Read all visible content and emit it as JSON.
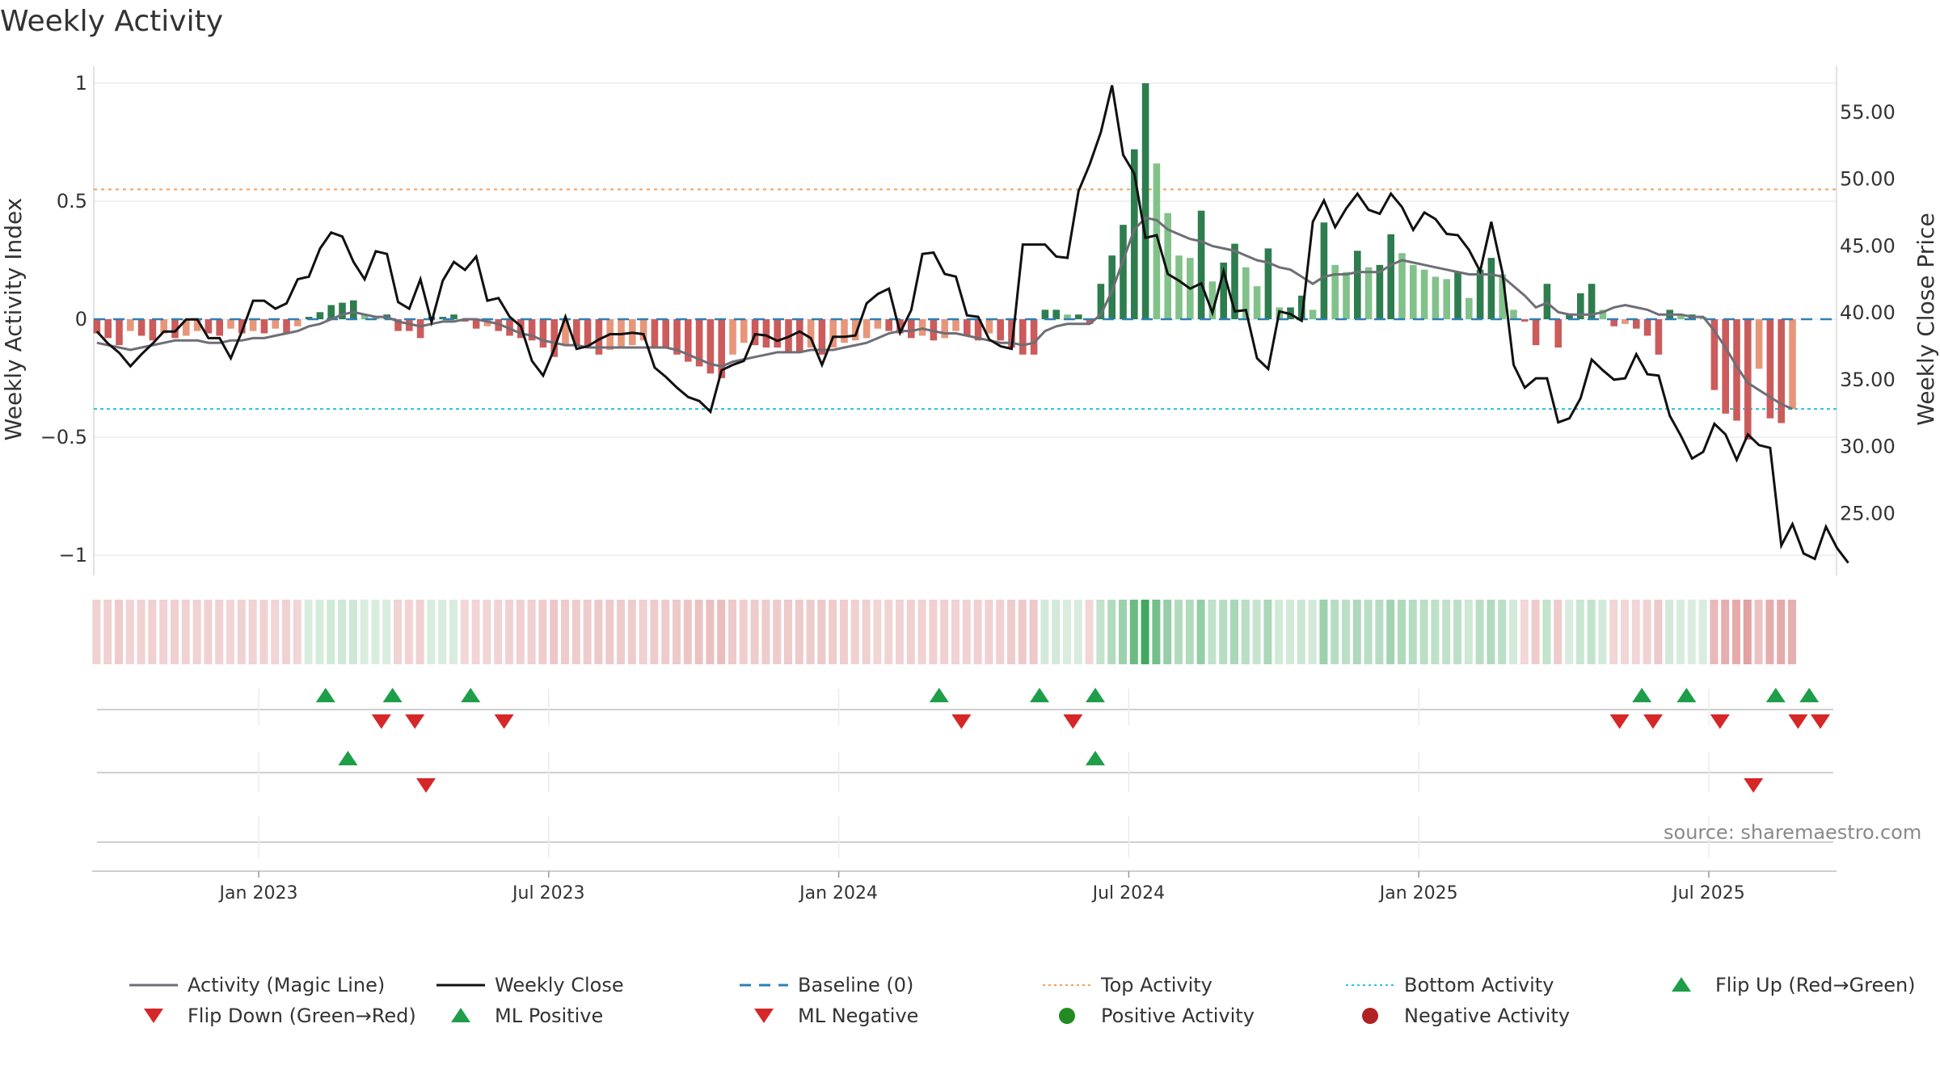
{
  "title": "Weekly Activity",
  "source": "source: sharemaestro.com",
  "colors": {
    "pos_dark": "#2e7d4f",
    "pos_light": "#82c28a",
    "neg_dark": "#cc5b5b",
    "neg_light": "#e8967a",
    "magic": "#6e6e76",
    "close": "#111111",
    "baseline": "#2f7fb5",
    "top": "#f0a060",
    "bottom": "#2ec4e0",
    "flip_up": "#1f9e4a",
    "flip_down": "#d62728"
  },
  "legend": [
    {
      "key": "magic",
      "label": "Activity (Magic Line)",
      "kind": "line"
    },
    {
      "key": "close",
      "label": "Weekly Close",
      "kind": "line"
    },
    {
      "key": "baseline",
      "label": "Baseline (0)",
      "kind": "dash"
    },
    {
      "key": "top",
      "label": "Top Activity",
      "kind": "dot"
    },
    {
      "key": "bottom",
      "label": "Bottom Activity",
      "kind": "dot"
    },
    {
      "key": "flip_up",
      "label": "Flip Up (Red→Green)",
      "kind": "tri-up"
    },
    {
      "key": "flip_down",
      "label": "Flip Down (Green→Red)",
      "kind": "tri-down"
    },
    {
      "key": "flip_up",
      "label": "ML Positive",
      "kind": "tri-up"
    },
    {
      "key": "flip_down",
      "label": "ML Negative",
      "kind": "tri-down"
    },
    {
      "key": "flip_up",
      "label": "Positive Activity",
      "kind": "circle"
    },
    {
      "key": "flip_down",
      "label": "Negative Activity",
      "kind": "circle"
    }
  ],
  "chart_data": {
    "type": "bar+line",
    "x_label_dates": [
      "Jan 2023",
      "Jul 2023",
      "Jan 2024",
      "Jul 2024",
      "Jan 2025",
      "Jul 2025"
    ],
    "x_tick_weeks": [
      10,
      36,
      62,
      88,
      114,
      140
    ],
    "left_axis": {
      "label": "Weekly Activity Index",
      "ticks": [
        1,
        0.5,
        0,
        -0.5,
        -1
      ],
      "tick_labels": [
        "1",
        "0.5",
        "0",
        "−0.5",
        "−1"
      ],
      "range": [
        -1.05,
        1.05
      ]
    },
    "right_axis": {
      "label": "Weekly Close Price",
      "ticks": [
        55,
        50,
        45,
        40,
        35,
        30,
        25
      ],
      "tick_labels": [
        "55.00",
        "50.00",
        "45.00",
        "40.00",
        "35.00",
        "30.00",
        "25.00"
      ],
      "range": [
        20.5,
        58.2
      ]
    },
    "top_activity": 0.55,
    "bottom_activity": -0.38,
    "start_week": -4.5,
    "activity": [
      -0.06,
      -0.08,
      -0.11,
      -0.05,
      -0.07,
      -0.09,
      -0.06,
      -0.08,
      -0.07,
      -0.05,
      -0.06,
      -0.07,
      -0.04,
      -0.06,
      -0.05,
      -0.06,
      -0.04,
      -0.06,
      -0.03,
      0.01,
      0.03,
      0.06,
      0.07,
      0.08,
      0.02,
      0.01,
      0.02,
      -0.05,
      -0.05,
      -0.08,
      0.01,
      0.01,
      0.02,
      -0.01,
      -0.04,
      -0.03,
      -0.05,
      -0.07,
      -0.08,
      -0.09,
      -0.12,
      -0.16,
      -0.11,
      -0.11,
      -0.12,
      -0.15,
      -0.13,
      -0.12,
      -0.11,
      -0.09,
      -0.12,
      -0.12,
      -0.15,
      -0.18,
      -0.2,
      -0.23,
      -0.25,
      -0.15,
      -0.1,
      -0.11,
      -0.12,
      -0.12,
      -0.14,
      -0.14,
      -0.12,
      -0.15,
      -0.12,
      -0.1,
      -0.09,
      -0.08,
      -0.04,
      -0.05,
      -0.06,
      -0.08,
      -0.07,
      -0.09,
      -0.08,
      -0.05,
      -0.07,
      -0.09,
      -0.06,
      -0.09,
      -0.12,
      -0.15,
      -0.15,
      0.04,
      0.04,
      0.02,
      0.02,
      -0.02,
      0.15,
      0.27,
      0.4,
      0.72,
      1.0,
      0.66,
      0.45,
      0.27,
      0.26,
      0.46,
      0.16,
      0.24,
      0.32,
      0.22,
      0.14,
      0.3,
      0.05,
      0.05,
      0.1,
      0.04,
      0.41,
      0.23,
      0.2,
      0.29,
      0.22,
      0.23,
      0.36,
      0.28,
      0.23,
      0.21,
      0.18,
      0.17,
      0.2,
      0.09,
      0.21,
      0.26,
      0.19,
      0.04,
      -0.01,
      -0.11,
      0.15,
      -0.12,
      0.02,
      0.11,
      0.15,
      0.04,
      -0.03,
      -0.02,
      -0.04,
      -0.07,
      -0.15,
      0.04,
      0.02,
      0.02,
      0.01,
      -0.3,
      -0.4,
      -0.43,
      -0.51,
      -0.21,
      -0.42,
      -0.44,
      -0.38
    ],
    "magic_line": [
      -0.1,
      -0.11,
      -0.12,
      -0.13,
      -0.12,
      -0.11,
      -0.1,
      -0.09,
      -0.09,
      -0.09,
      -0.1,
      -0.1,
      -0.09,
      -0.09,
      -0.08,
      -0.08,
      -0.07,
      -0.06,
      -0.05,
      -0.03,
      -0.02,
      0.0,
      0.02,
      0.03,
      0.02,
      0.01,
      0.01,
      -0.01,
      -0.02,
      -0.03,
      -0.02,
      -0.01,
      -0.01,
      0.0,
      0.0,
      -0.01,
      -0.02,
      -0.04,
      -0.06,
      -0.07,
      -0.09,
      -0.1,
      -0.11,
      -0.11,
      -0.12,
      -0.12,
      -0.12,
      -0.12,
      -0.12,
      -0.12,
      -0.12,
      -0.12,
      -0.13,
      -0.15,
      -0.17,
      -0.19,
      -0.2,
      -0.18,
      -0.17,
      -0.16,
      -0.15,
      -0.14,
      -0.14,
      -0.14,
      -0.13,
      -0.13,
      -0.13,
      -0.12,
      -0.11,
      -0.1,
      -0.08,
      -0.06,
      -0.05,
      -0.05,
      -0.04,
      -0.05,
      -0.06,
      -0.06,
      -0.07,
      -0.08,
      -0.09,
      -0.1,
      -0.1,
      -0.11,
      -0.1,
      -0.05,
      -0.03,
      -0.02,
      -0.02,
      -0.02,
      0.02,
      0.12,
      0.25,
      0.38,
      0.43,
      0.42,
      0.38,
      0.36,
      0.34,
      0.33,
      0.31,
      0.3,
      0.29,
      0.27,
      0.25,
      0.24,
      0.22,
      0.21,
      0.18,
      0.15,
      0.18,
      0.19,
      0.19,
      0.2,
      0.2,
      0.2,
      0.23,
      0.25,
      0.24,
      0.23,
      0.22,
      0.21,
      0.2,
      0.19,
      0.19,
      0.19,
      0.18,
      0.14,
      0.1,
      0.05,
      0.07,
      0.03,
      0.02,
      0.02,
      0.02,
      0.03,
      0.05,
      0.06,
      0.05,
      0.04,
      0.02,
      0.02,
      0.02,
      0.01,
      0.01,
      -0.05,
      -0.12,
      -0.2,
      -0.27,
      -0.3,
      -0.33,
      -0.36,
      -0.38
    ],
    "weekly_close": [
      38.6,
      37.7,
      37.0,
      36.0,
      36.9,
      37.7,
      38.6,
      38.6,
      39.5,
      39.5,
      38.1,
      38.1,
      36.6,
      38.6,
      40.9,
      40.9,
      40.3,
      40.7,
      42.5,
      42.7,
      44.8,
      46.0,
      45.7,
      43.8,
      42.5,
      44.6,
      44.4,
      40.8,
      40.3,
      42.5,
      39.3,
      42.4,
      43.8,
      43.2,
      44.2,
      40.9,
      41.1,
      39.7,
      39.0,
      36.4,
      35.3,
      37.3,
      39.7,
      37.3,
      37.5,
      38.0,
      38.4,
      38.4,
      38.5,
      38.4,
      35.9,
      35.2,
      34.4,
      33.7,
      33.4,
      32.6,
      35.7,
      36.1,
      36.4,
      38.4,
      38.3,
      37.9,
      38.2,
      38.6,
      38.1,
      36.1,
      38.2,
      38.2,
      38.3,
      40.7,
      41.4,
      41.8,
      38.5,
      40.2,
      44.4,
      44.5,
      42.9,
      42.7,
      39.8,
      39.7,
      38.0,
      37.5,
      37.3,
      45.1,
      45.1,
      45.1,
      44.2,
      44.1,
      49.1,
      51.1,
      53.5,
      57.0,
      51.8,
      50.4,
      45.6,
      45.8,
      42.9,
      42.4,
      41.8,
      42.2,
      40.0,
      43.1,
      40.1,
      40.2,
      36.6,
      35.8,
      40.1,
      39.9,
      39.4,
      46.8,
      48.4,
      46.4,
      47.8,
      48.9,
      47.7,
      47.4,
      48.9,
      47.9,
      46.2,
      47.5,
      47.0,
      45.9,
      45.8,
      44.7,
      43.1,
      46.8,
      43.0,
      36.1,
      34.4,
      35.1,
      35.1,
      31.8,
      32.1,
      33.6,
      36.5,
      35.7,
      35.0,
      35.1,
      36.9,
      35.4,
      35.3,
      32.3,
      30.8,
      29.1,
      29.6,
      31.7,
      30.9,
      29.0,
      30.9,
      30.1,
      29.9,
      22.6,
      24.2,
      22.0,
      21.6,
      24.0,
      22.4,
      21.3
    ],
    "flips_up_row1": [
      16,
      22,
      29,
      71,
      80,
      85,
      134,
      138,
      146,
      149
    ],
    "flips_down_row1": [
      21,
      24,
      32,
      73,
      83,
      132,
      135,
      141,
      148,
      150
    ],
    "ml_positive": [
      18,
      85
    ],
    "ml_negative": [
      25,
      144
    ]
  }
}
